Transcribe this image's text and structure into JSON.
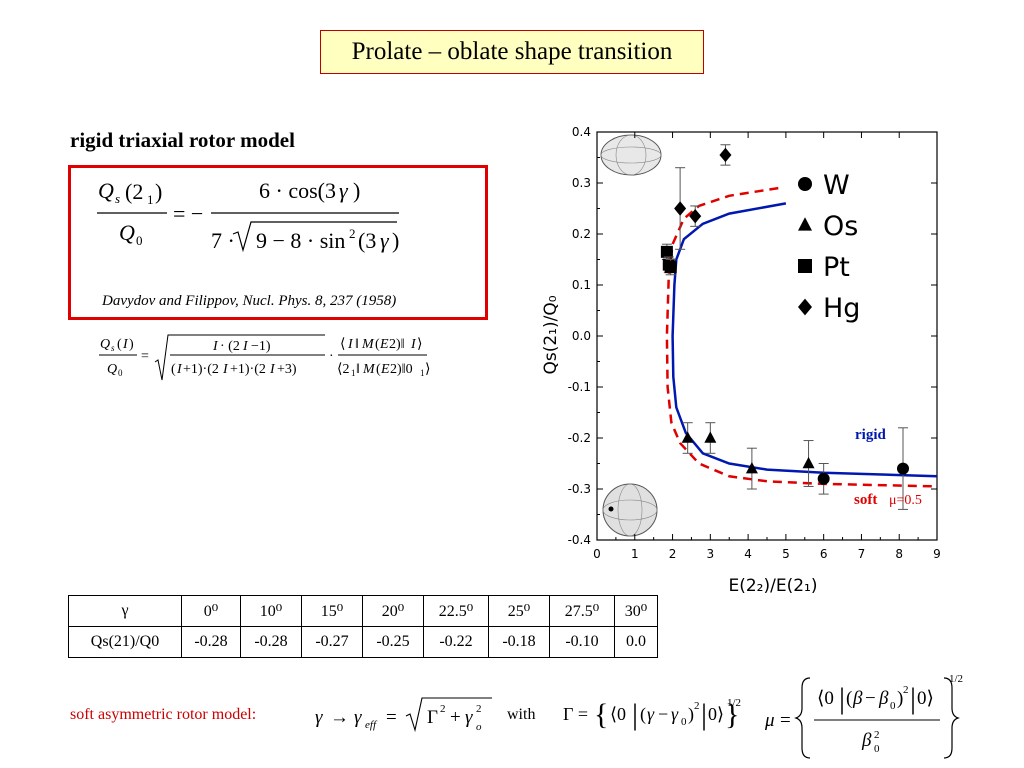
{
  "slide": {
    "title": "Prolate – oblate shape transition",
    "model_heading": "rigid triaxial rotor model",
    "citation": "Davydov and Filippov, Nucl. Phys. 8, 237 (1958)",
    "soft_model_label": "soft asymmetric rotor model:",
    "with_label": "with"
  },
  "table": {
    "header_label": "γ",
    "row_label": "Qs(21)/Q0",
    "gamma": [
      "0⁰",
      "10⁰",
      "15⁰",
      "20⁰",
      "22.5⁰",
      "25⁰",
      "27.5⁰",
      "30⁰"
    ],
    "qratio": [
      "-0.28",
      "-0.28",
      "-0.27",
      "-0.25",
      "-0.22",
      "-0.18",
      "-0.10",
      "0.0"
    ]
  },
  "chart_data": {
    "type": "scatter",
    "xlabel": "E(2₂)/E(2₁)",
    "ylabel": "Qs(2₁)/Q₀",
    "xlim": [
      0,
      9
    ],
    "ylim": [
      -0.4,
      0.4
    ],
    "x_ticks": [
      "0",
      "1",
      "2",
      "3",
      "4",
      "5",
      "6",
      "7",
      "8",
      "9"
    ],
    "y_ticks": [
      "0.4",
      "0.3",
      "0.2",
      "0.1",
      "0.0",
      "-0.1",
      "-0.2",
      "-0.3",
      "-0.4"
    ],
    "legend": [
      "W",
      "Os",
      "Pt",
      "Hg"
    ],
    "legend_position": "top-right",
    "series": [
      {
        "name": "W",
        "marker": "circle",
        "points": [
          [
            6.0,
            -0.28,
            0.03
          ],
          [
            8.1,
            -0.26,
            0.08
          ]
        ]
      },
      {
        "name": "Os",
        "marker": "triangle",
        "points": [
          [
            2.4,
            -0.2,
            0.03
          ],
          [
            3.0,
            -0.2,
            0.03
          ],
          [
            4.1,
            -0.26,
            0.04
          ],
          [
            5.6,
            -0.25,
            0.045
          ]
        ]
      },
      {
        "name": "Pt",
        "marker": "square",
        "points": [
          [
            1.85,
            0.165,
            0.015
          ],
          [
            1.9,
            0.14,
            0.015
          ],
          [
            1.95,
            0.135,
            0.015
          ]
        ]
      },
      {
        "name": "Hg",
        "marker": "diamond",
        "points": [
          [
            2.2,
            0.25,
            0.08
          ],
          [
            2.6,
            0.235,
            0.02
          ],
          [
            3.4,
            0.355,
            0.02
          ]
        ]
      }
    ],
    "curves": [
      {
        "name": "rigid",
        "label": "rigid",
        "color": "#0018b0",
        "style": "solid",
        "points": [
          [
            5.0,
            0.26
          ],
          [
            3.5,
            0.24
          ],
          [
            2.8,
            0.22
          ],
          [
            2.3,
            0.19
          ],
          [
            2.1,
            0.15
          ],
          [
            2.05,
            0.1
          ],
          [
            2.0,
            0.0
          ],
          [
            2.02,
            -0.08
          ],
          [
            2.1,
            -0.14
          ],
          [
            2.35,
            -0.19
          ],
          [
            2.8,
            -0.23
          ],
          [
            3.5,
            -0.25
          ],
          [
            4.5,
            -0.262
          ],
          [
            6.0,
            -0.268
          ],
          [
            9.0,
            -0.275
          ]
        ]
      },
      {
        "name": "soft",
        "label": "soft μ=0.5",
        "color": "#e00000",
        "style": "dashed",
        "points": [
          [
            4.8,
            0.29
          ],
          [
            3.5,
            0.275
          ],
          [
            2.7,
            0.255
          ],
          [
            2.3,
            0.23
          ],
          [
            2.0,
            0.18
          ],
          [
            1.9,
            0.12
          ],
          [
            1.85,
            0.0
          ],
          [
            1.87,
            -0.1
          ],
          [
            1.97,
            -0.17
          ],
          [
            2.2,
            -0.21
          ],
          [
            2.7,
            -0.25
          ],
          [
            3.5,
            -0.275
          ],
          [
            4.5,
            -0.285
          ],
          [
            6.0,
            -0.29
          ],
          [
            9.0,
            -0.295
          ]
        ]
      }
    ],
    "labels": {
      "rigid": "rigid",
      "soft": "soft",
      "mu": "μ=0.5"
    },
    "grid": false
  },
  "colors": {
    "title_bg": "#ffffc0",
    "accent_red": "#e00000",
    "rigid_blue": "#0018b0"
  }
}
